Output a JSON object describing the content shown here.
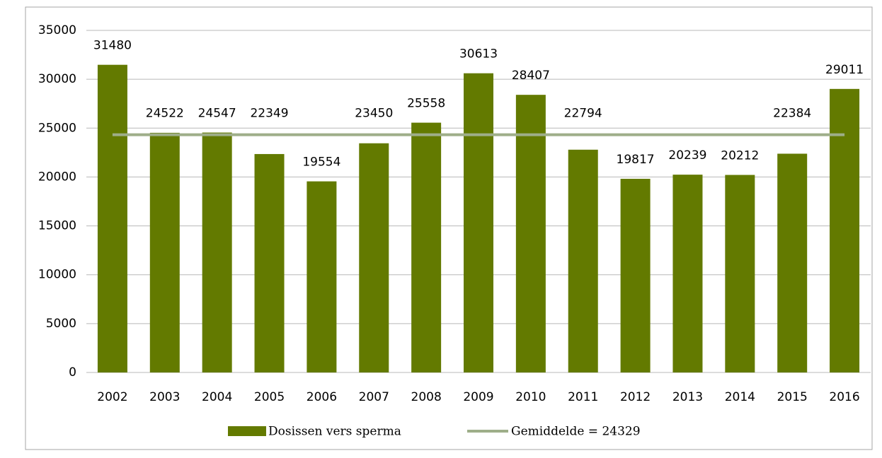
{
  "chart_data": {
    "type": "bar",
    "categories": [
      "2002",
      "2003",
      "2004",
      "2005",
      "2006",
      "2007",
      "2008",
      "2009",
      "2010",
      "2011",
      "2012",
      "2013",
      "2014",
      "2015",
      "2016"
    ],
    "series": [
      {
        "name": "Dosissen vers sperma",
        "type": "bar",
        "color": "#637a00",
        "values": [
          31480,
          24522,
          24547,
          22349,
          19554,
          23450,
          25558,
          30613,
          28407,
          22794,
          19817,
          20239,
          20212,
          22384,
          29011
        ]
      },
      {
        "name": "Gemiddelde = 24329",
        "type": "line",
        "color": "#9eae89",
        "values": [
          24329,
          24329,
          24329,
          24329,
          24329,
          24329,
          24329,
          24329,
          24329,
          24329,
          24329,
          24329,
          24329,
          24329,
          24329
        ]
      }
    ],
    "ylim": [
      0,
      35000
    ],
    "yticks": [
      0,
      5000,
      10000,
      15000,
      20000,
      25000,
      30000,
      35000
    ],
    "grid": true
  }
}
